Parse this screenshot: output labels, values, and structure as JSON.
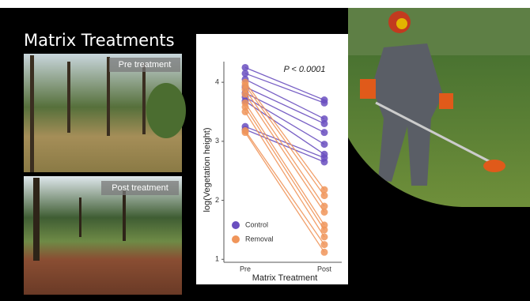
{
  "slide": {
    "title": "Matrix Treatments",
    "photos": [
      "Pre treatment",
      "Post treatment"
    ]
  },
  "chart_data": {
    "type": "paired",
    "annotation": "P < 0.0001",
    "x_label": "Matrix Treatment",
    "y_label": "log(Vegetation height)",
    "categories": [
      "Pre",
      "Post"
    ],
    "ylim": [
      0.95,
      4.35
    ],
    "yticks": [
      1,
      2,
      3,
      4
    ],
    "legend": "bottom-left",
    "series": [
      {
        "name": "Control",
        "color": "#6a4fbf",
        "values": [
          [
            4.25,
            3.7
          ],
          [
            4.15,
            3.65
          ],
          [
            4.05,
            3.38
          ],
          [
            3.92,
            3.3
          ],
          [
            3.82,
            3.15
          ],
          [
            3.75,
            2.95
          ],
          [
            3.68,
            2.78
          ],
          [
            3.25,
            2.72
          ],
          [
            3.2,
            2.65
          ]
        ]
      },
      {
        "name": "Removal",
        "color": "#f0955a",
        "values": [
          [
            4.0,
            2.18
          ],
          [
            3.95,
            2.08
          ],
          [
            3.88,
            1.9
          ],
          [
            3.8,
            1.8
          ],
          [
            3.65,
            1.58
          ],
          [
            3.58,
            1.5
          ],
          [
            3.5,
            1.38
          ],
          [
            3.18,
            1.25
          ],
          [
            3.15,
            1.12
          ]
        ]
      }
    ]
  }
}
